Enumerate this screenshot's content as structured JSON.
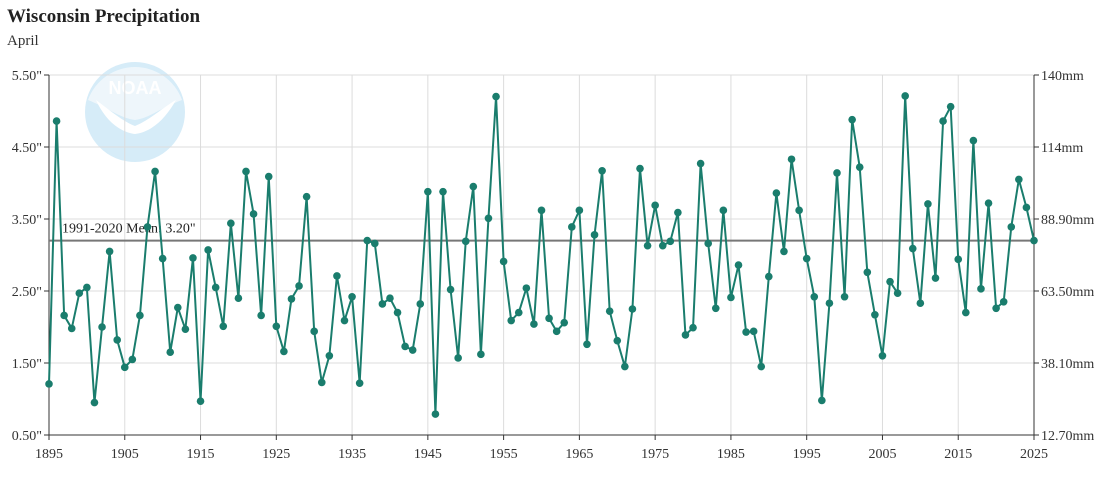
{
  "title": "Wisconsin Precipitation",
  "subtitle": "April",
  "colors": {
    "series": "#1a7d6d",
    "mean_line": "#777777",
    "grid": "#dcdcdc",
    "logo_light": "#d6ecf8",
    "logo_dark": "#b7dcf2"
  },
  "logo": {
    "text": "NOAA",
    "icon": "noaa-logo-icon"
  },
  "chart_data": {
    "type": "line",
    "title": "Wisconsin Precipitation",
    "subtitle": "April",
    "xlim": [
      1895,
      2025
    ],
    "ylim": [
      0.5,
      5.5
    ],
    "x_ticks": [
      1895,
      1905,
      1915,
      1925,
      1935,
      1945,
      1955,
      1965,
      1975,
      1985,
      1995,
      2005,
      2015,
      2025
    ],
    "y_ticks": [
      0.5,
      1.5,
      2.5,
      3.5,
      4.5,
      5.5
    ],
    "y_tick_labels": [
      "0.50\"",
      "1.50\"",
      "2.50\"",
      "3.50\"",
      "4.50\"",
      "5.50\""
    ],
    "y2_tick_labels": [
      "12.70mm",
      "38.10mm",
      "63.50mm",
      "88.90mm",
      "114mm",
      "140mm"
    ],
    "grid": true,
    "mean": {
      "value": 3.2,
      "label": "1991-2020 Mean: 3.20\""
    },
    "x": [
      1895,
      1896,
      1897,
      1898,
      1899,
      1900,
      1901,
      1902,
      1903,
      1904,
      1905,
      1906,
      1907,
      1908,
      1909,
      1910,
      1911,
      1912,
      1913,
      1914,
      1915,
      1916,
      1917,
      1918,
      1919,
      1920,
      1921,
      1922,
      1923,
      1924,
      1925,
      1926,
      1927,
      1928,
      1929,
      1930,
      1931,
      1932,
      1933,
      1934,
      1935,
      1936,
      1937,
      1938,
      1939,
      1940,
      1941,
      1942,
      1943,
      1944,
      1945,
      1946,
      1947,
      1948,
      1949,
      1950,
      1951,
      1952,
      1953,
      1954,
      1955,
      1956,
      1957,
      1958,
      1959,
      1960,
      1961,
      1962,
      1963,
      1964,
      1965,
      1966,
      1967,
      1968,
      1969,
      1970,
      1971,
      1972,
      1973,
      1974,
      1975,
      1976,
      1977,
      1978,
      1979,
      1980,
      1981,
      1982,
      1983,
      1984,
      1985,
      1986,
      1987,
      1988,
      1989,
      1990,
      1991,
      1992,
      1993,
      1994,
      1995,
      1996,
      1997,
      1998,
      1999,
      2000,
      2001,
      2002,
      2003,
      2004,
      2005,
      2006,
      2007,
      2008,
      2009,
      2010,
      2011,
      2012,
      2013,
      2014,
      2015,
      2016,
      2017,
      2018,
      2019,
      2020,
      2021,
      2022,
      2023,
      2024,
      2025
    ],
    "series": [
      {
        "values": [
          1.21,
          4.86,
          2.16,
          1.98,
          2.47,
          2.55,
          0.95,
          2.0,
          3.05,
          1.82,
          1.44,
          1.55,
          2.16,
          3.39,
          4.16,
          2.95,
          1.65,
          2.27,
          1.97,
          2.96,
          0.97,
          3.07,
          2.55,
          2.01,
          3.44,
          2.4,
          4.16,
          3.57,
          2.16,
          4.09,
          2.01,
          1.66,
          2.39,
          2.57,
          3.81,
          1.94,
          1.23,
          1.6,
          2.71,
          2.09,
          2.42,
          1.22,
          3.2,
          3.16,
          2.32,
          2.4,
          2.2,
          1.73,
          1.68,
          2.32,
          3.88,
          0.79,
          3.88,
          2.52,
          1.57,
          3.19,
          3.95,
          1.62,
          3.51,
          5.2,
          2.91,
          2.09,
          2.2,
          2.54,
          2.04,
          3.62,
          2.12,
          1.94,
          2.06,
          3.39,
          3.62,
          1.76,
          3.28,
          4.17,
          2.22,
          1.81,
          1.45,
          2.25,
          4.2,
          3.13,
          3.69,
          3.13,
          3.19,
          3.59,
          1.89,
          1.99,
          4.27,
          3.16,
          2.26,
          3.62,
          2.41,
          2.86,
          1.93,
          1.94,
          1.45,
          2.7,
          3.86,
          3.05,
          4.33,
          3.62,
          2.95,
          2.42,
          0.98,
          2.33,
          4.14,
          2.42,
          4.88,
          4.22,
          2.76,
          2.17,
          1.6,
          2.63,
          2.47,
          5.21,
          3.09,
          2.33,
          3.71,
          2.68,
          4.86,
          5.06,
          2.94,
          2.2,
          4.59,
          2.53,
          3.72,
          2.26,
          2.35,
          3.39,
          4.05,
          3.66,
          3.2
        ]
      }
    ]
  }
}
